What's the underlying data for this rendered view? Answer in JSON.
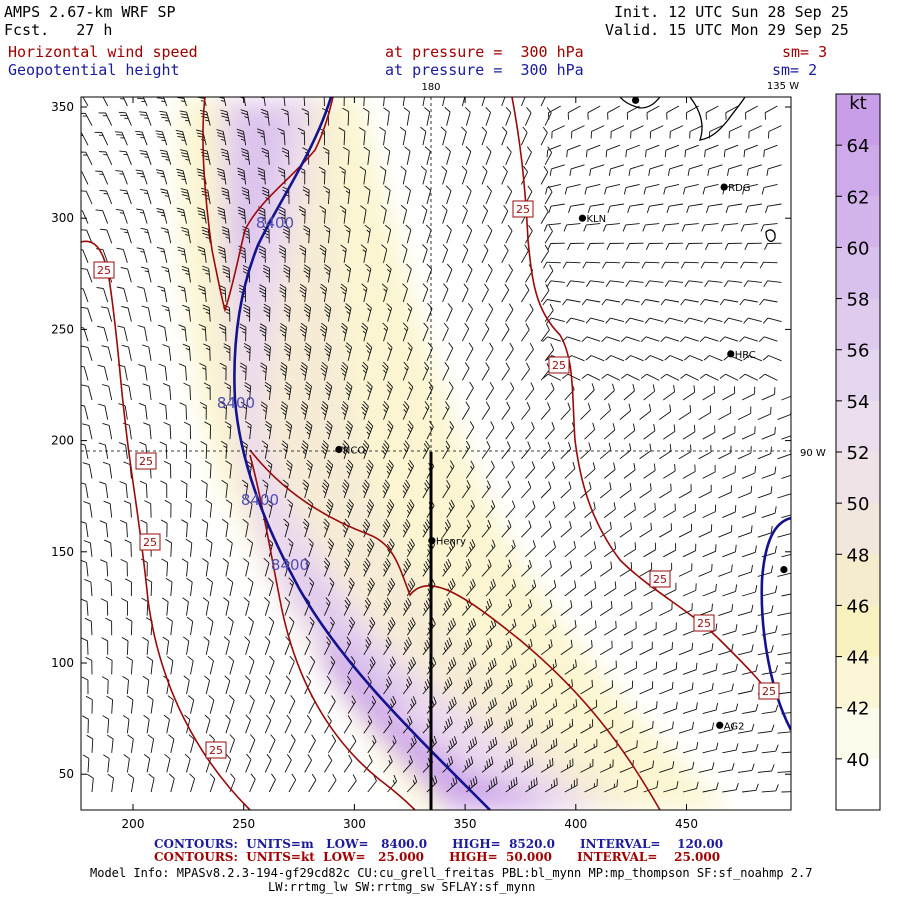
{
  "header": {
    "model": "AMPS 2.67-km WRF SP",
    "fcst": "Fcst.   27 h",
    "init": "Init. 12 UTC Sun 28 Sep 25",
    "valid": "Valid. 15 UTC Mon 29 Sep 25",
    "field1_name": "Horizontal wind speed",
    "field1_level": "at pressure =  300 hPa",
    "field1_smooth": "sm= 3",
    "field2_name": "Geopotential height",
    "field2_level": "at pressure =  300 hPa",
    "field2_smooth": "sm= 2"
  },
  "map_labels": {
    "lon_180": "180",
    "lon_135w": "135 W",
    "lon_90w": "90 W"
  },
  "axes": {
    "x_ticks": [
      "200",
      "250",
      "300",
      "350",
      "400",
      "450"
    ],
    "y_ticks": [
      "350",
      "300",
      "250",
      "200",
      "150",
      "100",
      "50"
    ]
  },
  "stations": [
    {
      "name": "NCO",
      "x": 293,
      "y": 196
    },
    {
      "name": "Henry",
      "x": 335,
      "y": 155
    },
    {
      "name": "KLN",
      "x": 403,
      "y": 300
    },
    {
      "name": "RDG",
      "x": 467,
      "y": 314
    },
    {
      "name": "HRC",
      "x": 470,
      "y": 239
    },
    {
      "name": "AG2",
      "x": 465,
      "y": 72
    },
    {
      "name": "",
      "x": 427,
      "y": 353
    },
    {
      "name": "",
      "x": 494,
      "y": 142
    }
  ],
  "contour_labels": {
    "height": [
      "8400",
      "8400",
      "8400",
      "8400"
    ],
    "speed": [
      "25",
      "25",
      "25",
      "25",
      "25",
      "25",
      "25",
      "25",
      "25"
    ]
  },
  "colorbar": {
    "unit": "kt",
    "labels": [
      "64",
      "62",
      "60",
      "58",
      "56",
      "54",
      "52",
      "50",
      "48",
      "46",
      "44",
      "42",
      "40"
    ],
    "colors": [
      "#c99ee9",
      "#ceaaeb",
      "#d3b5ec",
      "#d8c1ed",
      "#decbee",
      "#e4d6ef",
      "#ebdfee",
      "#efe3e8",
      "#f2e7dc",
      "#f5eccd",
      "#f8f1c0",
      "#fbf6d6",
      "#fdfbec",
      "#ffffff"
    ]
  },
  "footer": {
    "contours1": "CONTOURS:  UNITS=m   LOW=   8400.0      HIGH=  8520.0      INTERVAL=    120.00",
    "contours2": "CONTOURS:  UNITS=kt  LOW=   25.000      HIGH=  50.000      INTERVAL=    25.000",
    "model_info1": "Model Info: MPASv8.2.3-194-gf29cd82c CU:cu_grell_freitas PBL:bl_mynn MP:mp_thompson SF:sf_noahmp 2.7",
    "model_info2": "LW:rrtmg_lw SW:rrtmg_sw SFLAY:sf_mynn"
  }
}
